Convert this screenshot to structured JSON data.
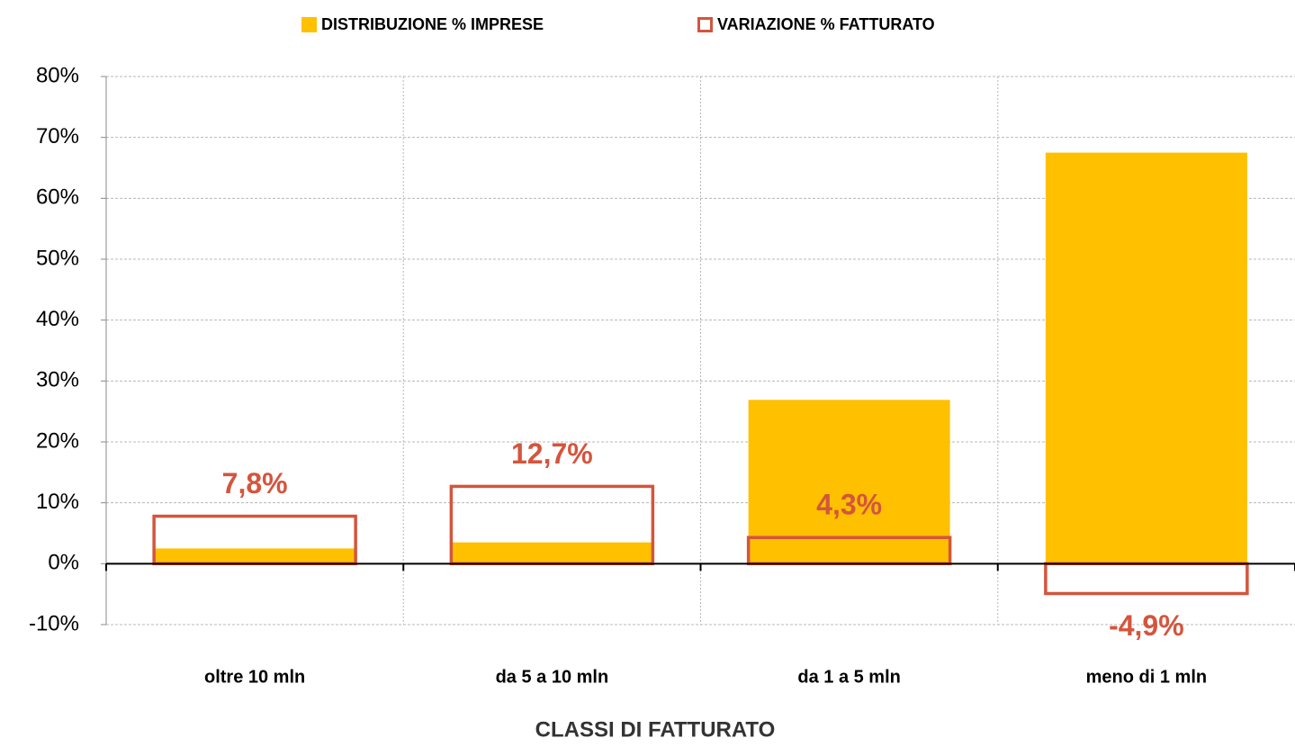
{
  "chart_data": {
    "type": "bar",
    "x_label": "CLASSI DI FATTURATO",
    "categories": [
      "oltre 10 mln",
      "da 5 a 10 mln",
      "da 1 a 5 mln",
      "meno di 1 mln"
    ],
    "series": [
      {
        "name": "DISTRIBUZIONE % IMPRESE",
        "color": "#ffc000",
        "fill": true,
        "values": [
          2.5,
          3.5,
          26.9,
          67.5
        ]
      },
      {
        "name": "VARIAZIONE % FATTURATO",
        "color": "#d4553d",
        "fill": false,
        "values": [
          7.8,
          12.7,
          4.3,
          -4.9
        ],
        "value_labels": [
          "7,8%",
          "12,7%",
          "4,3%",
          "-4,9%"
        ]
      }
    ],
    "ylim": [
      -10,
      80
    ],
    "yticks": [
      {
        "value": -10,
        "label": "-10%"
      },
      {
        "value": 0,
        "label": "0%"
      },
      {
        "value": 10,
        "label": "10%"
      },
      {
        "value": 20,
        "label": "20%"
      },
      {
        "value": 30,
        "label": "30%"
      },
      {
        "value": 40,
        "label": "40%"
      },
      {
        "value": 50,
        "label": "50%"
      },
      {
        "value": 60,
        "label": "60%"
      },
      {
        "value": 70,
        "label": "70%"
      },
      {
        "value": 80,
        "label": "80%"
      }
    ],
    "grid": true,
    "legend": "top"
  }
}
